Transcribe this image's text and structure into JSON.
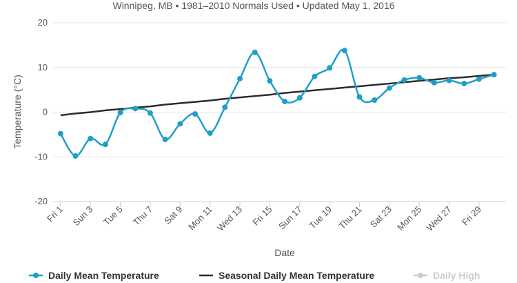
{
  "chart_data": {
    "type": "line",
    "subtitle": "Winnipeg, MB • 1981–2010 Normals Used • Updated May 1, 2016",
    "xlabel": "Date",
    "ylabel": "Temperature (°C)",
    "ylim": [
      -20,
      20
    ],
    "y_ticks": [
      -20,
      -10,
      0,
      10,
      20
    ],
    "grid": true,
    "legend_position": "bottom",
    "x": [
      1,
      2,
      3,
      4,
      5,
      6,
      7,
      8,
      9,
      10,
      11,
      12,
      13,
      14,
      15,
      16,
      17,
      18,
      19,
      20,
      21,
      22,
      23,
      24,
      25,
      26,
      27,
      28,
      29,
      30
    ],
    "x_tick_labels": [
      {
        "x": 1,
        "label": "Fri 1"
      },
      {
        "x": 3,
        "label": "Sun 3"
      },
      {
        "x": 5,
        "label": "Tue 5"
      },
      {
        "x": 7,
        "label": "Thu 7"
      },
      {
        "x": 9,
        "label": "Sat 9"
      },
      {
        "x": 11,
        "label": "Mon 11"
      },
      {
        "x": 13,
        "label": "Wed 13"
      },
      {
        "x": 15,
        "label": "Fri 15"
      },
      {
        "x": 17,
        "label": "Sun 17"
      },
      {
        "x": 19,
        "label": "Tue 19"
      },
      {
        "x": 21,
        "label": "Thu 21"
      },
      {
        "x": 23,
        "label": "Sat 23"
      },
      {
        "x": 25,
        "label": "Mon 25"
      },
      {
        "x": 27,
        "label": "Wed 27"
      },
      {
        "x": 29,
        "label": "Fri 29"
      }
    ],
    "series": [
      {
        "name": "Daily Mean Temperature",
        "color": "#1f9fc6",
        "markers": true,
        "smooth": true,
        "values": [
          -4.8,
          -9.8,
          -5.9,
          -7.2,
          -0.1,
          0.8,
          -0.2,
          -6.1,
          -2.6,
          -0.4,
          -4.7,
          1.1,
          7.5,
          13.4,
          7.0,
          2.4,
          3.2,
          8.0,
          9.9,
          13.8,
          3.4,
          2.7,
          5.4,
          7.2,
          7.7,
          6.6,
          7.1,
          6.4,
          7.4,
          8.4
        ]
      },
      {
        "name": "Seasonal Daily Mean Temperature",
        "color": "#2b2b2b",
        "markers": false,
        "smooth": false,
        "values": [
          -0.7,
          -0.3,
          0.0,
          0.4,
          0.7,
          1.0,
          1.3,
          1.7,
          2.0,
          2.3,
          2.6,
          3.0,
          3.3,
          3.6,
          3.9,
          4.3,
          4.6,
          4.9,
          5.2,
          5.5,
          5.8,
          6.1,
          6.4,
          6.7,
          7.0,
          7.3,
          7.6,
          7.8,
          8.1,
          8.4
        ]
      }
    ],
    "legend_items": [
      {
        "name": "Daily Mean Temperature",
        "color": "#1f9fc6",
        "marker": true
      },
      {
        "name": "Seasonal Daily Mean Temperature",
        "color": "#2b2b2b",
        "marker": false
      },
      {
        "name": "Daily High",
        "color": "#cccccc",
        "marker": true
      }
    ]
  }
}
